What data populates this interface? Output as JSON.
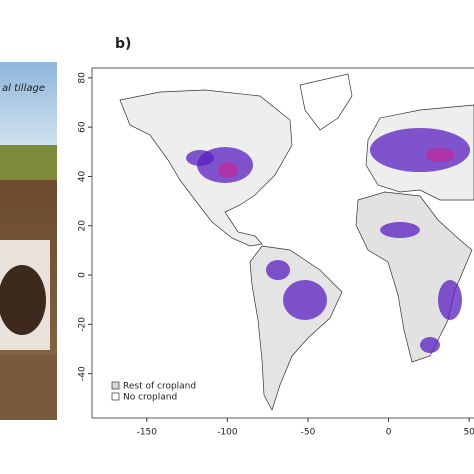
{
  "panel_label": "b)",
  "photo_caption": "al tillage",
  "map": {
    "xlim": [
      -184,
      53
    ],
    "ylim": [
      -58,
      84
    ],
    "xticks": [
      -150,
      -100,
      -50,
      0,
      50
    ],
    "yticks": [
      80,
      60,
      40,
      20,
      0,
      -20,
      -40
    ],
    "legend": [
      {
        "label": "Rest of cropland",
        "color": "#d9d9d9"
      },
      {
        "label": "No cropland",
        "color": "#ffffff"
      }
    ]
  }
}
